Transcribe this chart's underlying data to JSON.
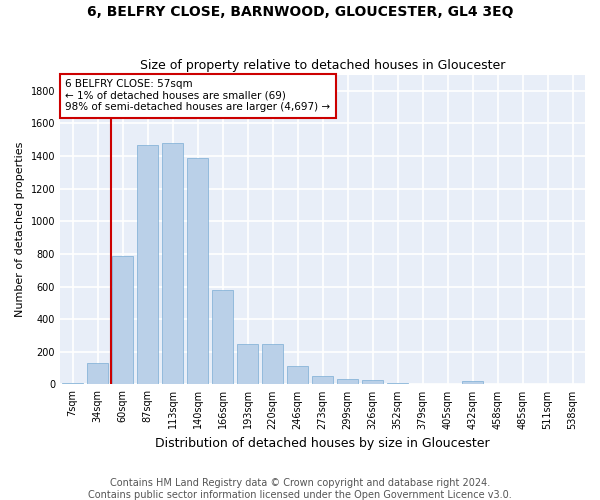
{
  "title": "6, BELFRY CLOSE, BARNWOOD, GLOUCESTER, GL4 3EQ",
  "subtitle": "Size of property relative to detached houses in Gloucester",
  "xlabel": "Distribution of detached houses by size in Gloucester",
  "ylabel": "Number of detached properties",
  "categories": [
    "7sqm",
    "34sqm",
    "60sqm",
    "87sqm",
    "113sqm",
    "140sqm",
    "166sqm",
    "193sqm",
    "220sqm",
    "246sqm",
    "273sqm",
    "299sqm",
    "326sqm",
    "352sqm",
    "379sqm",
    "405sqm",
    "432sqm",
    "458sqm",
    "485sqm",
    "511sqm",
    "538sqm"
  ],
  "values": [
    10,
    130,
    790,
    1470,
    1480,
    1390,
    580,
    250,
    250,
    115,
    50,
    35,
    30,
    10,
    5,
    0,
    20,
    0,
    0,
    0,
    0
  ],
  "bar_color": "#bad0e8",
  "bar_edgecolor": "#7aadd4",
  "ylim": [
    0,
    1900
  ],
  "yticks": [
    0,
    200,
    400,
    600,
    800,
    1000,
    1200,
    1400,
    1600,
    1800
  ],
  "red_line_bin": 2,
  "annotation_line1": "6 BELFRY CLOSE: 57sqm",
  "annotation_line2": "← 1% of detached houses are smaller (69)",
  "annotation_line3": "98% of semi-detached houses are larger (4,697) →",
  "annotation_box_color": "#ffffff",
  "annotation_box_edgecolor": "#cc0000",
  "footer1": "Contains HM Land Registry data © Crown copyright and database right 2024.",
  "footer2": "Contains public sector information licensed under the Open Government Licence v3.0.",
  "fig_facecolor": "#ffffff",
  "background_color": "#e8eef8",
  "grid_color": "#ffffff",
  "title_fontsize": 10,
  "subtitle_fontsize": 9,
  "tick_fontsize": 7,
  "ylabel_fontsize": 8,
  "xlabel_fontsize": 9,
  "footer_fontsize": 7
}
